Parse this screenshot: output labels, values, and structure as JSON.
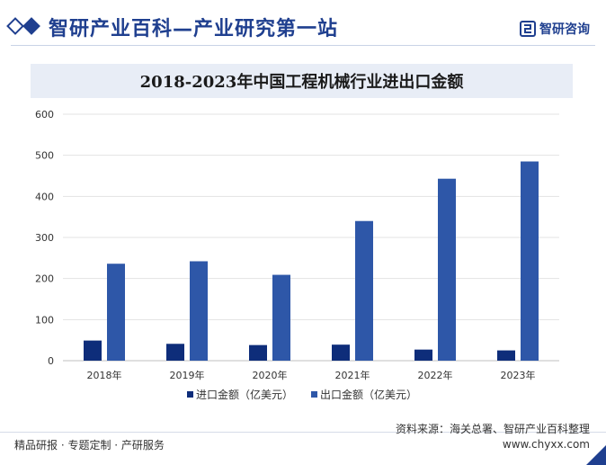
{
  "header": {
    "site_title": "智研产业百科—产业研究第一站",
    "brand_name": "智研咨询"
  },
  "chart_data": {
    "type": "bar",
    "title": "2018-2023年中国工程机械行业进出口金额",
    "categories": [
      "2018年",
      "2019年",
      "2020年",
      "2021年",
      "2022年",
      "2023年"
    ],
    "series": [
      {
        "name": "进口金额（亿美元）",
        "color": "#0e2d7a",
        "values": [
          49,
          41,
          38,
          39,
          27,
          25
        ]
      },
      {
        "name": "出口金额（亿美元）",
        "color": "#2e57a8",
        "values": [
          236,
          242,
          209,
          340,
          443,
          485
        ]
      }
    ],
    "ylim": [
      0,
      600
    ],
    "yticks": [
      "0",
      "100",
      "200",
      "300",
      "400",
      "500",
      "600"
    ],
    "grid": true,
    "legend_position": "bottom"
  },
  "footer": {
    "left_text": "精品研报 · 专题定制 · 产研服务",
    "source_text": "资料来源：海关总署、智研产业百科整理",
    "url": "www.chyxx.com"
  }
}
